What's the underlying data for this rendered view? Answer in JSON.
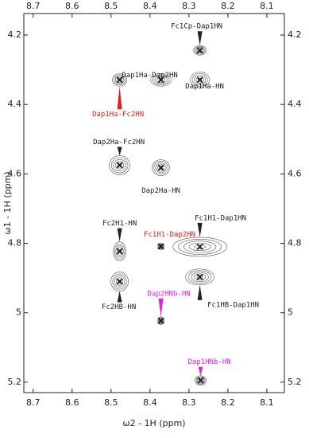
{
  "chart_data": {
    "type": "scatter",
    "xlabel": "ω2 - 1H (ppm)",
    "ylabel": "ω1 - 1H (ppm)",
    "xlim": [
      8.724,
      8.055
    ],
    "ylim": [
      4.138,
      5.23
    ],
    "xticks": [
      8.7,
      8.6,
      8.5,
      8.4,
      8.3,
      8.2,
      8.1
    ],
    "yticks": [
      4.2,
      4.4,
      4.6,
      4.8,
      5.0,
      5.2
    ],
    "x": [
      8.272,
      8.478,
      8.372,
      8.272,
      8.478,
      8.372,
      8.478,
      8.372,
      8.272,
      8.478,
      8.272,
      8.372,
      8.27
    ],
    "y": [
      4.244,
      4.329,
      4.329,
      4.329,
      4.575,
      4.582,
      4.823,
      4.809,
      4.81,
      4.91,
      4.897,
      5.023,
      5.195
    ],
    "labels": [
      "Fc1Cp-Dap1HN",
      "Dap1Ha-Fc2HN",
      "Dap1Ha-Dap2HN",
      "Dap1Ha-HN",
      "Dap2Ha-Fc2HN",
      "Dap2Ha-HN",
      "Fc2H1-HN",
      "Fc1H1-Dap2HN",
      "Fc1H1-Dap1HN",
      "Fc2HB-HN",
      "Fc1HB-Dap1HN",
      "Dap2HNb-HN",
      "Dap1HNb-HN"
    ],
    "label_colors": [
      "#222222",
      "#e0201b",
      "#222222",
      "#222222",
      "#222222",
      "#222222",
      "#222222",
      "#e0201b",
      "#222222",
      "#222222",
      "#222222",
      "#e020e0",
      "#e020e0"
    ],
    "contour_color": "#555555",
    "marker_color": "#111111"
  }
}
